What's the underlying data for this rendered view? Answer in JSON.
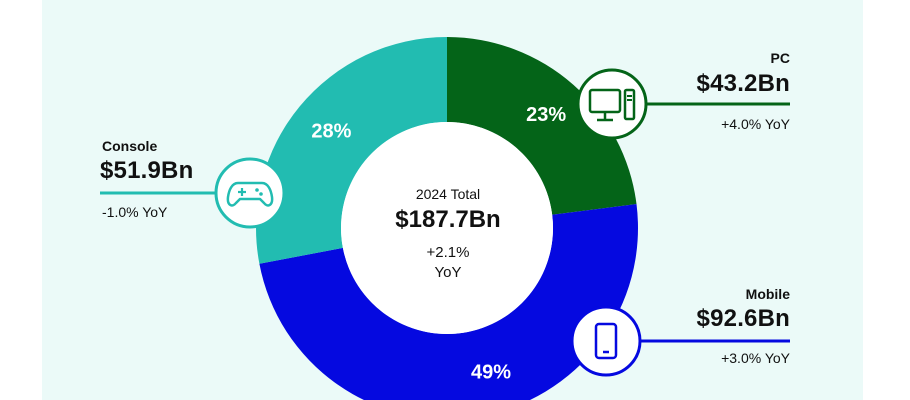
{
  "chart_data": {
    "type": "pie",
    "title": "",
    "center": {
      "label": "2024 Total",
      "value": "$187.7Bn",
      "yoy_value": "+2.1%",
      "yoy_unit": "YoY"
    },
    "slices": [
      {
        "name": "PC",
        "percent": 23,
        "pct_label": "23%",
        "value_label": "$43.2Bn",
        "yoy": "+4.0% YoY",
        "color": "#046418",
        "icon": "desktop-computer-icon"
      },
      {
        "name": "Mobile",
        "percent": 49,
        "pct_label": "49%",
        "value_label": "$92.6Bn",
        "yoy": "+3.0% YoY",
        "color": "#0509e0",
        "icon": "smartphone-icon"
      },
      {
        "name": "Console",
        "percent": 28,
        "pct_label": "28%",
        "value_label": "$51.9Bn",
        "yoy": "-1.0% YoY",
        "color": "#22bcb1",
        "icon": "gamepad-icon"
      }
    ]
  }
}
